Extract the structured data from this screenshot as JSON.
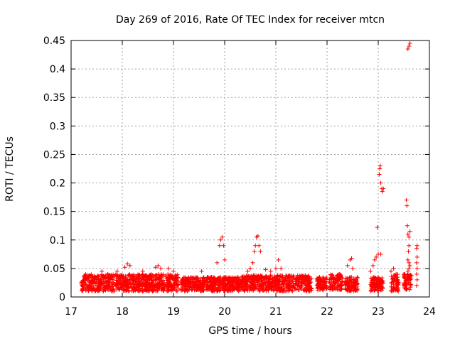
{
  "chart_data": {
    "type": "scatter",
    "title": "Day 269 of 2016, Rate Of TEC Index for receiver mtcn",
    "xlabel": "GPS time / hours",
    "ylabel": "ROTI / TECUs",
    "xlim": [
      17,
      24
    ],
    "ylim": [
      0,
      0.45
    ],
    "xticks": [
      17,
      18,
      19,
      20,
      21,
      22,
      23,
      24
    ],
    "xtick_labels": [
      "17",
      "18",
      "19",
      "20",
      "21",
      "22",
      "23",
      "24"
    ],
    "yticks": [
      0,
      0.05,
      0.1,
      0.15,
      0.2,
      0.25,
      0.3,
      0.35,
      0.4,
      0.45
    ],
    "ytick_labels": [
      "0",
      "0.05",
      "0.1",
      "0.15",
      "0.2",
      "0.25",
      "0.3",
      "0.35",
      "0.4",
      "0.45"
    ],
    "grid": true,
    "marker": "+",
    "series_color": "#ff0000",
    "background_bands": [
      {
        "x0": 17.2,
        "x1": 19.1,
        "ymin": 0.01,
        "ymax": 0.04
      },
      {
        "x0": 19.15,
        "x1": 20.3,
        "ymin": 0.01,
        "ymax": 0.035
      },
      {
        "x0": 20.3,
        "x1": 21.7,
        "ymin": 0.01,
        "ymax": 0.038
      },
      {
        "x0": 21.8,
        "x1": 22.0,
        "ymin": 0.012,
        "ymax": 0.035
      },
      {
        "x0": 22.05,
        "x1": 22.3,
        "ymin": 0.012,
        "ymax": 0.04
      },
      {
        "x0": 22.35,
        "x1": 22.6,
        "ymin": 0.01,
        "ymax": 0.035
      },
      {
        "x0": 22.85,
        "x1": 23.1,
        "ymin": 0.01,
        "ymax": 0.035
      },
      {
        "x0": 23.25,
        "x1": 23.4,
        "ymin": 0.01,
        "ymax": 0.04
      },
      {
        "x0": 23.5,
        "x1": 23.65,
        "ymin": 0.012,
        "ymax": 0.04
      }
    ],
    "points": [
      [
        17.6,
        0.045
      ],
      [
        17.9,
        0.045
      ],
      [
        18.05,
        0.052
      ],
      [
        18.1,
        0.058
      ],
      [
        18.15,
        0.055
      ],
      [
        18.4,
        0.045
      ],
      [
        18.65,
        0.052
      ],
      [
        18.7,
        0.055
      ],
      [
        18.75,
        0.05
      ],
      [
        18.9,
        0.05
      ],
      [
        19.0,
        0.045
      ],
      [
        19.55,
        0.045
      ],
      [
        19.85,
        0.06
      ],
      [
        19.9,
        0.09
      ],
      [
        19.92,
        0.1
      ],
      [
        19.95,
        0.105
      ],
      [
        19.98,
        0.09
      ],
      [
        20.0,
        0.065
      ],
      [
        20.45,
        0.045
      ],
      [
        20.5,
        0.05
      ],
      [
        20.55,
        0.06
      ],
      [
        20.58,
        0.08
      ],
      [
        20.6,
        0.09
      ],
      [
        20.62,
        0.105
      ],
      [
        20.65,
        0.107
      ],
      [
        20.67,
        0.09
      ],
      [
        20.7,
        0.08
      ],
      [
        20.8,
        0.048
      ],
      [
        20.9,
        0.045
      ],
      [
        21.0,
        0.05
      ],
      [
        21.05,
        0.065
      ],
      [
        21.1,
        0.05
      ],
      [
        22.25,
        0.04
      ],
      [
        22.4,
        0.055
      ],
      [
        22.45,
        0.065
      ],
      [
        22.48,
        0.068
      ],
      [
        22.5,
        0.05
      ],
      [
        22.85,
        0.045
      ],
      [
        22.9,
        0.055
      ],
      [
        22.93,
        0.065
      ],
      [
        22.96,
        0.07
      ],
      [
        22.98,
        0.122
      ],
      [
        23.0,
        0.075
      ],
      [
        23.02,
        0.215
      ],
      [
        23.03,
        0.225
      ],
      [
        23.04,
        0.23
      ],
      [
        23.05,
        0.2
      ],
      [
        23.07,
        0.19
      ],
      [
        23.08,
        0.185
      ],
      [
        23.1,
        0.19
      ],
      [
        23.05,
        0.075
      ],
      [
        23.25,
        0.045
      ],
      [
        23.3,
        0.05
      ],
      [
        23.35,
        0.04
      ],
      [
        23.5,
        0.04
      ],
      [
        23.55,
        0.17
      ],
      [
        23.56,
        0.16
      ],
      [
        23.57,
        0.125
      ],
      [
        23.58,
        0.11
      ],
      [
        23.6,
        0.105
      ],
      [
        23.59,
        0.08
      ],
      [
        23.6,
        0.09
      ],
      [
        23.62,
        0.115
      ],
      [
        23.58,
        0.065
      ],
      [
        23.6,
        0.06
      ],
      [
        23.62,
        0.055
      ],
      [
        23.58,
        0.435
      ],
      [
        23.6,
        0.44
      ],
      [
        23.62,
        0.445
      ],
      [
        23.6,
        0.05
      ],
      [
        23.58,
        0.045
      ],
      [
        23.75,
        0.02
      ],
      [
        23.76,
        0.03
      ],
      [
        23.75,
        0.04
      ],
      [
        23.76,
        0.05
      ],
      [
        23.75,
        0.06
      ],
      [
        23.76,
        0.07
      ],
      [
        23.75,
        0.085
      ],
      [
        23.76,
        0.09
      ]
    ]
  }
}
